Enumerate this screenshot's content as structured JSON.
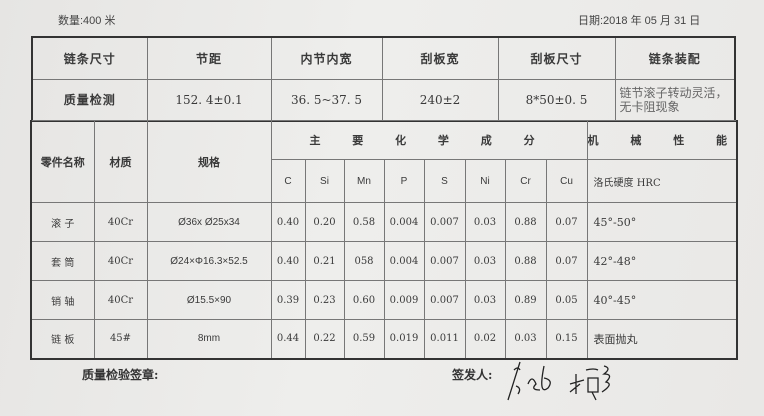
{
  "header": {
    "quantity": "数量:400 米",
    "date": "日期:2018 年 05 月 31 日"
  },
  "chain_table": {
    "headers": [
      "链条尺寸",
      "节距",
      "内节内宽",
      "刮板宽",
      "刮板尺寸",
      "链条装配"
    ],
    "row": [
      "质量检测",
      "152. 4±0.1",
      "36. 5~37. 5",
      "240±2",
      "8*50±0. 5",
      "链节滚子转动灵活，无卡阻现象"
    ]
  },
  "parts_table": {
    "col_part": "零件名称",
    "col_material": "材质",
    "col_spec": "规格",
    "chem_title": "主 要 化 学 成 分",
    "mech_title": "机 械 性 能",
    "elements": [
      "C",
      "Si",
      "Mn",
      "P",
      "S",
      "Ni",
      "Cr",
      "Cu"
    ],
    "hardness": "洛氏硬度 HRC",
    "rows": [
      {
        "part": "滚 子",
        "material": "40Cr",
        "spec": "Ø36x Ø25x34",
        "chem": [
          "0.40",
          "0.20",
          "0.58",
          "0.004",
          "0.007",
          "0.03",
          "0.88",
          "0.07"
        ],
        "mech": "45°-50°"
      },
      {
        "part": "套 筒",
        "material": "40Cr",
        "spec": "Ø24×Φ16.3×52.5",
        "chem": [
          "0.40",
          "0.21",
          "058",
          "0.004",
          "0.007",
          "0.03",
          "0.88",
          "0.07"
        ],
        "mech": "42°-48°"
      },
      {
        "part": "销 轴",
        "material": "40Cr",
        "spec": "Ø15.5×90",
        "chem": [
          "0.39",
          "0.23",
          "0.60",
          "0.009",
          "0.007",
          "0.03",
          "0.89",
          "0.05"
        ],
        "mech": "40°-45°"
      },
      {
        "part": "链 板",
        "material": "45#",
        "spec": "8mm",
        "chem": [
          "0.44",
          "0.22",
          "0.59",
          "0.019",
          "0.011",
          "0.02",
          "0.03",
          "0.15"
        ],
        "mech": "表面抛丸"
      }
    ]
  },
  "footer": {
    "stamp_label": "质量检验签章:",
    "issuer_label": "签发人:",
    "signature": "31/5 2018"
  }
}
